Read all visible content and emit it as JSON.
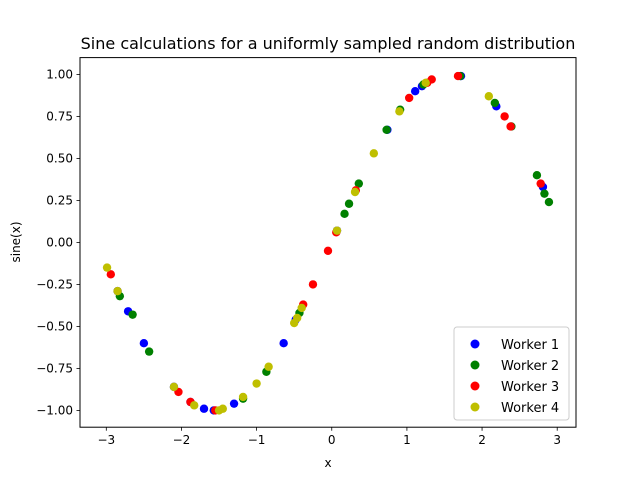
{
  "chart_data": {
    "type": "scatter",
    "title": "Sine calculations for a uniformly sampled random distribution",
    "xlabel": "x",
    "ylabel": "sine(x)",
    "xlim": [
      -3.35,
      3.25
    ],
    "ylim": [
      -1.1,
      1.1
    ],
    "xticks": [
      -3,
      -2,
      -1,
      0,
      1,
      2,
      3
    ],
    "xtick_labels": [
      "−3",
      "−2",
      "−1",
      "0",
      "1",
      "2",
      "3"
    ],
    "yticks": [
      -1.0,
      -0.75,
      -0.5,
      -0.25,
      0.0,
      0.25,
      0.5,
      0.75,
      1.0
    ],
    "ytick_labels": [
      "−1.00",
      "−0.75",
      "−0.50",
      "−0.25",
      "0.00",
      "0.25",
      "0.50",
      "0.75",
      "1.00"
    ],
    "grid": false,
    "legend_position": "lower-right",
    "series": [
      {
        "name": "Worker 1",
        "color": "#0000ff",
        "x": [
          -2.85,
          -2.71,
          -2.5,
          -2.1,
          -1.88,
          -1.7,
          -1.57,
          -1.3,
          -0.64,
          -0.48,
          0.07,
          0.74,
          1.11,
          1.2,
          1.72,
          2.19,
          2.81
        ],
        "y": [
          -0.29,
          -0.41,
          -0.6,
          -0.86,
          -0.95,
          -0.99,
          -1.0,
          -0.96,
          -0.6,
          -0.46,
          0.07,
          0.67,
          0.9,
          0.93,
          0.99,
          0.81,
          0.33
        ]
      },
      {
        "name": "Worker 2",
        "color": "#008000",
        "x": [
          -2.82,
          -2.65,
          -2.43,
          -1.18,
          -0.87,
          -0.43,
          0.17,
          0.23,
          0.36,
          0.73,
          0.91,
          1.22,
          1.71,
          2.17,
          2.39,
          2.73,
          2.83,
          2.89
        ],
        "y": [
          -0.32,
          -0.43,
          -0.65,
          -0.93,
          -0.77,
          -0.42,
          0.17,
          0.23,
          0.35,
          0.67,
          0.79,
          0.94,
          0.99,
          0.83,
          0.69,
          0.4,
          0.29,
          0.24
        ]
      },
      {
        "name": "Worker 3",
        "color": "#ff0000",
        "x": [
          -2.94,
          -2.04,
          -1.88,
          -1.55,
          -0.38,
          -0.25,
          -0.05,
          0.06,
          0.32,
          1.03,
          1.27,
          1.33,
          1.68,
          2.3,
          2.38,
          2.78
        ],
        "y": [
          -0.19,
          -0.89,
          -0.95,
          -1.0,
          -0.37,
          -0.25,
          -0.05,
          0.06,
          0.31,
          0.86,
          0.95,
          0.97,
          0.99,
          0.75,
          0.69,
          0.35
        ]
      },
      {
        "name": "Worker 4",
        "color": "#bfbf00",
        "x": [
          -2.99,
          -2.85,
          -2.1,
          -1.83,
          -1.5,
          -1.45,
          -1.18,
          -1.0,
          -0.84,
          -0.5,
          -0.46,
          -0.4,
          0.07,
          0.31,
          0.56,
          0.9,
          1.25,
          2.09
        ],
        "y": [
          -0.15,
          -0.29,
          -0.86,
          -0.97,
          -1.0,
          -0.99,
          -0.92,
          -0.84,
          -0.74,
          -0.48,
          -0.45,
          -0.39,
          0.07,
          0.3,
          0.53,
          0.78,
          0.95,
          0.87
        ]
      }
    ]
  }
}
